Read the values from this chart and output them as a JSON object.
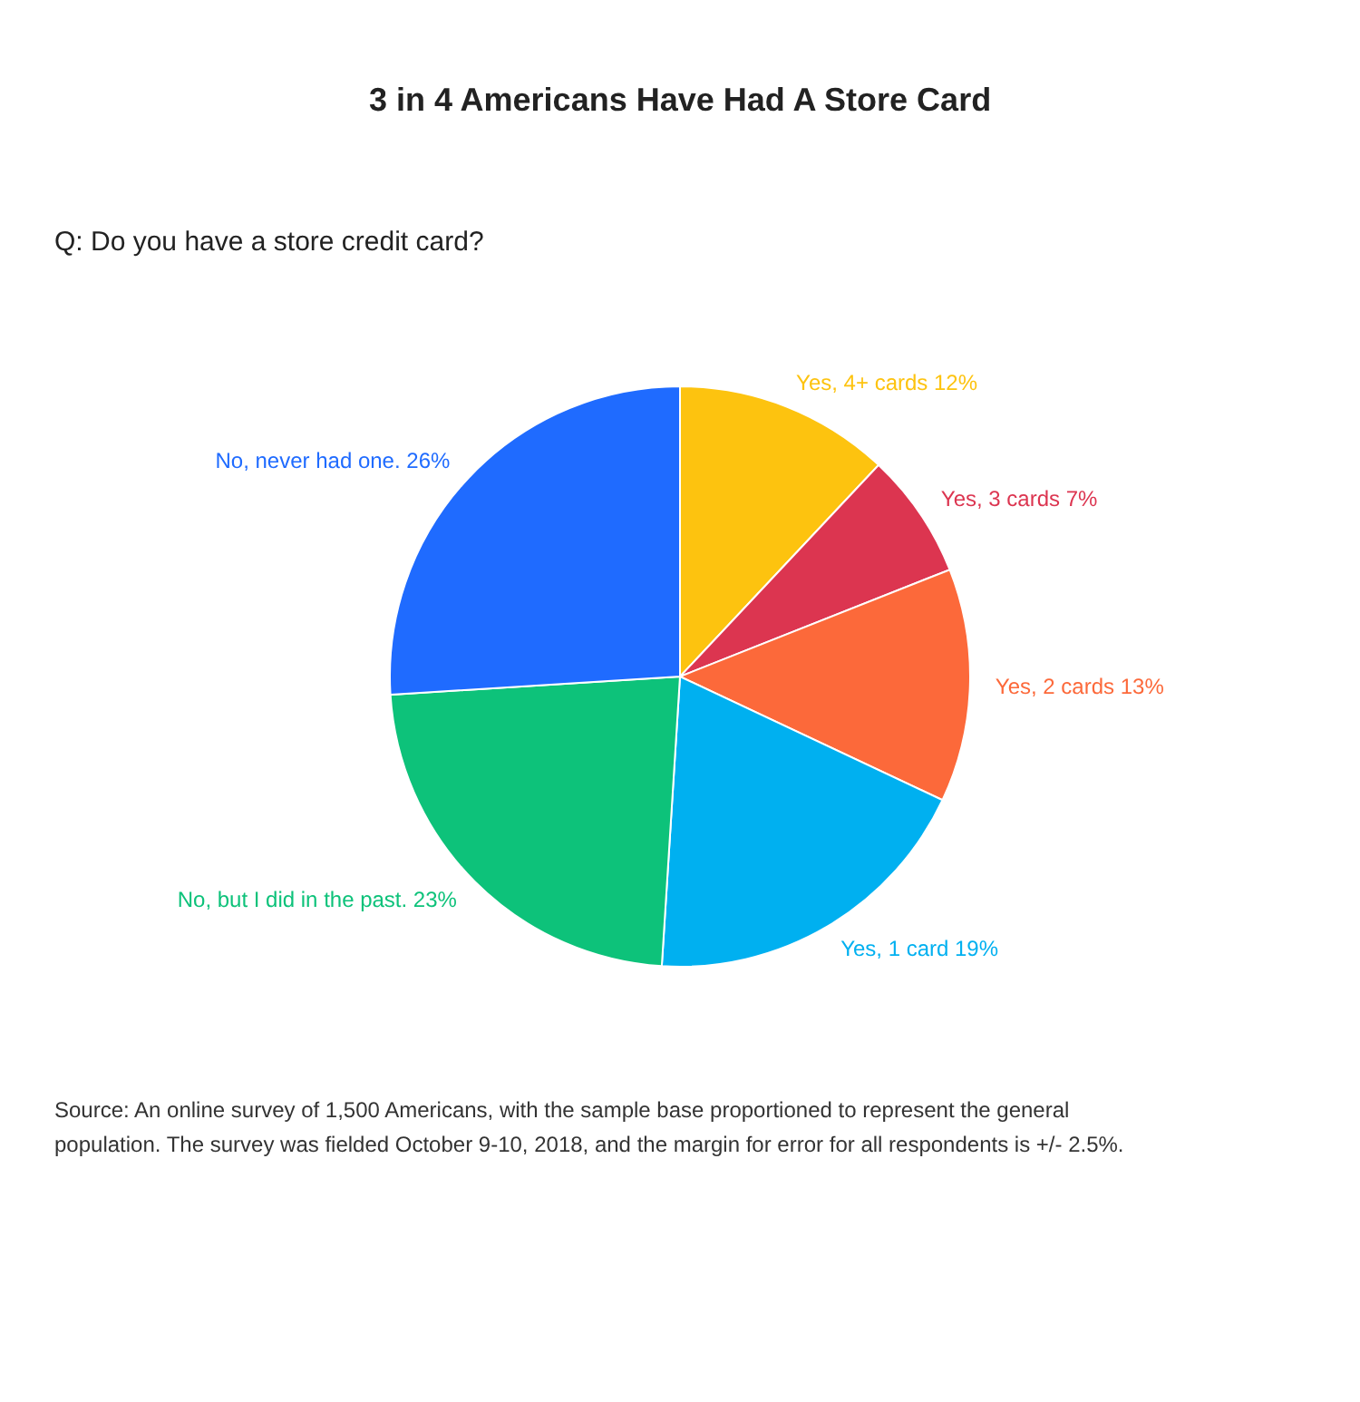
{
  "chart_data": {
    "type": "pie",
    "title": "3 in 4 Americans Have Had A Store Card",
    "subtitle": "Q:  Do you have a store credit card?",
    "categories": [
      "Yes, 4+ cards",
      "Yes, 3 cards",
      "Yes, 2 cards",
      "Yes, 1 card",
      "No, but I did in the past.",
      "No, never had one."
    ],
    "values": [
      12,
      7,
      13,
      19,
      23,
      26
    ],
    "value_labels": [
      "12%",
      "7%",
      "13%",
      "19%",
      "23%",
      "26%"
    ],
    "colors": [
      "#fdc30f",
      "#dc3550",
      "#fc693a",
      "#00b0f0",
      "#0dc27a",
      "#1f6bff"
    ],
    "annotations": [
      "Source: An online survey of 1,500 Americans, with the sample base proportioned to represent the general population. The survey was fielded October 9-10, 2018, and the margin for error for all respondents is +/- 2.5%."
    ],
    "legend": false
  }
}
